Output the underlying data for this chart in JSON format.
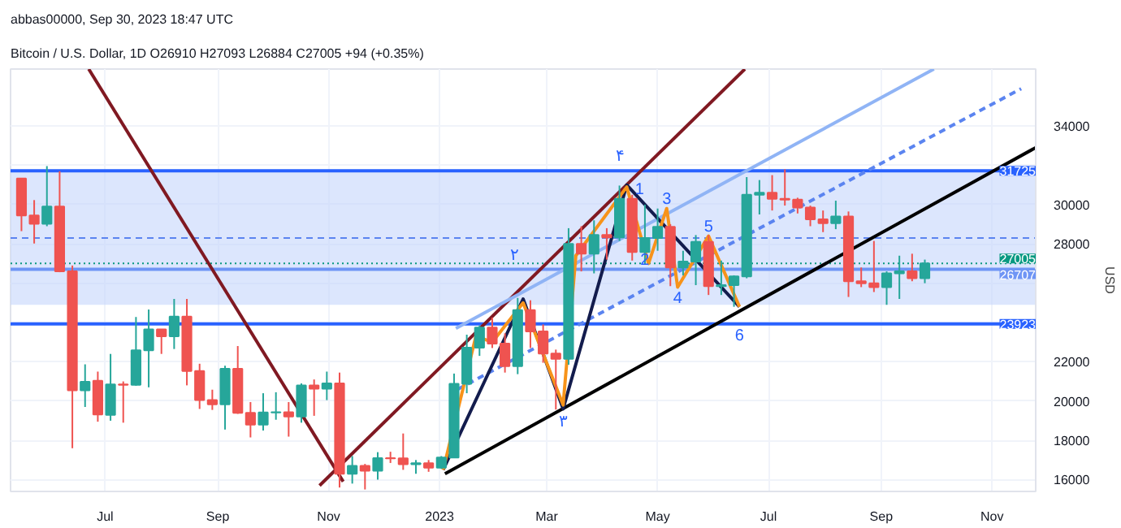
{
  "chart_data": {
    "type": "candlestick",
    "title": "Bitcoin / U.S. Dollar, 1D   O26910 H27093 L26884 C27005 +94 (+0.35%)",
    "subtitle": "abbas00000, Sep 30, 2023 18:47 UTC",
    "ylabel": "USD",
    "xlim": [
      "2022-05-10",
      "2023-11-25"
    ],
    "ylim": [
      15400,
      36900
    ],
    "xticks": [
      {
        "value": "2022-07-01",
        "label": "Jul"
      },
      {
        "value": "2022-09-01",
        "label": "Sep"
      },
      {
        "value": "2022-11-01",
        "label": "Nov"
      },
      {
        "value": "2023-01-01",
        "label": "2023"
      },
      {
        "value": "2023-03-01",
        "label": "Mar"
      },
      {
        "value": "2023-05-01",
        "label": "May"
      },
      {
        "value": "2023-07-01",
        "label": "Jul"
      },
      {
        "value": "2023-09-01",
        "label": "Sep"
      },
      {
        "value": "2023-11-01",
        "label": "Nov"
      }
    ],
    "yticks": [
      16000,
      18000,
      20000,
      22000,
      {
        "value": 24000,
        "label": null
      },
      {
        "value": 26000,
        "label": null
      },
      28000,
      30000,
      {
        "value": 32000,
        "label": null
      },
      34000
    ],
    "grid": true,
    "series": [
      {
        "x": [
          "2022-05-16",
          "2022-05-23",
          "2022-05-30",
          "2022-06-06",
          "2022-06-13",
          "2022-06-20",
          "2022-06-27",
          "2022-07-04",
          "2022-07-11",
          "2022-07-18",
          "2022-07-25",
          "2022-08-01",
          "2022-08-08",
          "2022-08-15",
          "2022-08-22",
          "2022-08-29",
          "2022-09-05",
          "2022-09-12",
          "2022-09-19",
          "2022-09-26",
          "2022-10-03",
          "2022-10-10",
          "2022-10-17",
          "2022-10-24",
          "2022-10-31",
          "2022-11-07",
          "2022-11-14",
          "2022-11-21",
          "2022-11-28",
          "2022-12-05",
          "2022-12-12",
          "2022-12-19",
          "2022-12-26",
          "2023-01-02",
          "2023-01-09",
          "2023-01-16",
          "2023-01-23",
          "2023-01-30",
          "2023-02-06",
          "2023-02-13",
          "2023-02-20",
          "2023-02-27",
          "2023-03-06",
          "2023-03-13",
          "2023-03-20",
          "2023-03-27",
          "2023-04-03",
          "2023-04-10",
          "2023-04-17",
          "2023-04-24",
          "2023-05-01",
          "2023-05-08",
          "2023-05-15",
          "2023-05-22",
          "2023-05-29",
          "2023-06-05",
          "2023-06-12",
          "2023-06-19",
          "2023-06-26",
          "2023-07-03",
          "2023-07-10",
          "2023-07-17",
          "2023-07-24",
          "2023-07-31",
          "2023-08-07",
          "2023-08-14",
          "2023-08-21",
          "2023-08-28",
          "2023-09-04",
          "2023-09-11",
          "2023-09-18",
          "2023-09-25"
        ],
        "ohlc": [
          [
            31330,
            31330,
            28650,
            29450
          ],
          [
            29450,
            30230,
            28020,
            29020
          ],
          [
            29020,
            31960,
            28900,
            29900
          ],
          [
            29900,
            31700,
            26560,
            26600
          ],
          [
            26600,
            26900,
            17600,
            20550
          ],
          [
            20550,
            21870,
            19700,
            20980
          ],
          [
            21030,
            21500,
            18950,
            19320
          ],
          [
            19300,
            22400,
            19000,
            20850
          ],
          [
            20850,
            21000,
            18900,
            20830
          ],
          [
            20830,
            24280,
            20780,
            22580
          ],
          [
            22580,
            24660,
            20700,
            23650
          ],
          [
            23650,
            23650,
            22400,
            23300
          ],
          [
            23300,
            25200,
            22650,
            24300
          ],
          [
            24300,
            25200,
            20800,
            21530
          ],
          [
            21530,
            21900,
            19600,
            20050
          ],
          [
            20050,
            20580,
            19550,
            19830
          ],
          [
            19830,
            21800,
            18550,
            21640
          ],
          [
            21640,
            22800,
            19350,
            19400
          ],
          [
            19400,
            19950,
            18150,
            18800
          ],
          [
            18800,
            20400,
            18500,
            19420
          ],
          [
            19420,
            20450,
            19050,
            19430
          ],
          [
            19430,
            19950,
            18190,
            19210
          ],
          [
            19210,
            20900,
            18900,
            20800
          ],
          [
            20800,
            21100,
            19250,
            20630
          ],
          [
            20630,
            21500,
            20050,
            20900
          ],
          [
            20900,
            21450,
            15600,
            16300
          ],
          [
            16300,
            17200,
            15800,
            16700
          ],
          [
            16700,
            16800,
            15500,
            16450
          ],
          [
            16450,
            17400,
            16000,
            17100
          ],
          [
            17100,
            17420,
            16850,
            17090
          ],
          [
            17090,
            18350,
            16500,
            16780
          ],
          [
            16780,
            17000,
            16300,
            16840
          ],
          [
            16840,
            17000,
            16400,
            16610
          ],
          [
            16610,
            17200,
            16550,
            17130
          ],
          [
            17130,
            21400,
            17100,
            20880
          ],
          [
            20880,
            23380,
            20400,
            22720
          ],
          [
            22720,
            23850,
            22300,
            23740
          ],
          [
            23740,
            24250,
            22700,
            22930
          ],
          [
            22930,
            23450,
            21450,
            21780
          ],
          [
            21780,
            25250,
            21370,
            24630
          ],
          [
            24630,
            25130,
            22700,
            23550
          ],
          [
            23550,
            23900,
            21950,
            22420
          ],
          [
            22420,
            22620,
            19570,
            22150
          ],
          [
            22150,
            28800,
            21850,
            28000
          ],
          [
            28000,
            28900,
            26600,
            27500
          ],
          [
            27500,
            29200,
            26500,
            28450
          ],
          [
            28450,
            28800,
            27200,
            28330
          ],
          [
            28330,
            30970,
            28150,
            30300
          ],
          [
            30300,
            30500,
            27150,
            27590
          ],
          [
            27590,
            30000,
            26950,
            28300
          ],
          [
            28300,
            29800,
            27650,
            28870
          ],
          [
            28870,
            29000,
            25850,
            26800
          ],
          [
            26800,
            27650,
            26400,
            27100
          ],
          [
            27100,
            28450,
            25900,
            28100
          ],
          [
            28100,
            28450,
            25400,
            25850
          ],
          [
            25850,
            27150,
            25400,
            25900
          ],
          [
            25900,
            26400,
            24800,
            26350
          ],
          [
            26350,
            31400,
            26250,
            30500
          ],
          [
            30500,
            31250,
            29500,
            30600
          ],
          [
            30600,
            31500,
            29700,
            30300
          ],
          [
            30300,
            31800,
            29950,
            30250
          ],
          [
            30250,
            30350,
            29550,
            29850
          ],
          [
            29850,
            29950,
            28900,
            29250
          ],
          [
            29250,
            29700,
            28600,
            29050
          ],
          [
            29050,
            30200,
            28750,
            29400
          ],
          [
            29400,
            29650,
            25300,
            26100
          ],
          [
            26100,
            26800,
            25800,
            26000
          ],
          [
            26000,
            28150,
            25550,
            25800
          ],
          [
            25800,
            26600,
            24900,
            26500
          ],
          [
            26500,
            27400,
            25200,
            26600
          ],
          [
            26600,
            27500,
            26100,
            26250
          ],
          [
            26250,
            27200,
            26000,
            27005
          ]
        ],
        "colors": [
          "#ef5350",
          "#ef5350",
          "#26a69a",
          "#ef5350",
          "#ef5350",
          "#26a69a",
          "#ef5350",
          "#26a69a",
          "#ef5350",
          "#26a69a",
          "#26a69a",
          "#ef5350",
          "#26a69a",
          "#ef5350",
          "#ef5350",
          "#ef5350",
          "#26a69a",
          "#ef5350",
          "#ef5350",
          "#26a69a",
          "#26a69a",
          "#ef5350",
          "#26a69a",
          "#ef5350",
          "#26a69a",
          "#ef5350",
          "#26a69a",
          "#ef5350",
          "#26a69a",
          "#ef5350",
          "#ef5350",
          "#26a69a",
          "#ef5350",
          "#26a69a",
          "#26a69a",
          "#26a69a",
          "#26a69a",
          "#ef5350",
          "#ef5350",
          "#26a69a",
          "#ef5350",
          "#ef5350",
          "#ef5350",
          "#26a69a",
          "#ef5350",
          "#26a69a",
          "#ef5350",
          "#26a69a",
          "#ef5350",
          "#26a69a",
          "#26a69a",
          "#ef5350",
          "#26a69a",
          "#26a69a",
          "#ef5350",
          "#26a69a",
          "#26a69a",
          "#26a69a",
          "#26a69a",
          "#ef5350",
          "#ef5350",
          "#ef5350",
          "#ef5350",
          "#ef5350",
          "#26a69a",
          "#ef5350",
          "#ef5350",
          "#ef5350",
          "#26a69a",
          "#26a69a",
          "#ef5350",
          "#26a69a"
        ]
      },
      {
        "type": "line",
        "color": "#801922",
        "x": [
          "2022-06-22",
          "2022-11-09"
        ],
        "values": [
          36900,
          15900
        ]
      },
      {
        "type": "line",
        "color": "#801922",
        "x": [
          "2022-10-27",
          "2023-06-18"
        ],
        "values": [
          15700,
          36900
        ]
      },
      {
        "type": "line",
        "color": "#000000",
        "x": [
          "2023-01-04",
          "2023-11-25"
        ],
        "values": [
          16300,
          32900
        ]
      },
      {
        "type": "line",
        "color": "#90b4f5",
        "x": [
          "2023-01-10",
          "2023-09-30"
        ],
        "values": [
          23700,
          36900
        ]
      },
      {
        "type": "line",
        "color": "#5b84f0",
        "line_style": "dashed",
        "x": [
          "2023-01-11",
          "2023-11-17"
        ],
        "values": [
          20600,
          35900
        ]
      },
      {
        "type": "line",
        "color": "#131c4d",
        "x": [
          "2023-01-03",
          "2023-02-16",
          "2023-03-10",
          "2023-04-14",
          "2023-06-15"
        ],
        "values": [
          16500,
          25200,
          19600,
          31000,
          24800
        ]
      },
      {
        "type": "line",
        "color": "#f7931a",
        "x": [
          "2023-01-03",
          "2023-01-21",
          "2023-01-30",
          "2023-02-16",
          "2023-03-10",
          "2023-03-17",
          "2023-04-14",
          "2023-04-26",
          "2023-05-06",
          "2023-05-12",
          "2023-05-29",
          "2023-06-15"
        ],
        "values": [
          16500,
          23300,
          23000,
          25000,
          19800,
          27400,
          30900,
          27000,
          29800,
          25800,
          28400,
          24800
        ]
      }
    ],
    "bands": [
      {
        "axis": "y",
        "from": 24900,
        "to": 31725,
        "color": "#c5d5fb"
      }
    ],
    "ref_lines": [
      {
        "axis": "y",
        "value": 31725,
        "label": "31725",
        "color": "#2962ff"
      },
      {
        "axis": "y",
        "value": 28300,
        "color": "#5b84f0",
        "line_style": "dashed"
      },
      {
        "axis": "y",
        "value": 27005,
        "label": "27005",
        "color": "#089981",
        "line_style": "dotted"
      },
      {
        "axis": "y",
        "value": 26707,
        "label": "26707",
        "color": "#6f95f5"
      },
      {
        "axis": "y",
        "value": 23923,
        "label": "23923",
        "color": "#2962ff"
      }
    ],
    "annotations": [
      {
        "text": "1",
        "x": "2023-04-21",
        "y": 30300
      },
      {
        "text": "2",
        "x": "2023-04-24",
        "y": 26707
      },
      {
        "text": "3",
        "x": "2023-05-06",
        "y": 29800
      },
      {
        "text": "4",
        "x": "2023-05-12",
        "y": 25800
      },
      {
        "text": "5",
        "x": "2023-05-29",
        "y": 28400
      },
      {
        "text": "6",
        "x": "2023-06-15",
        "y": 23923
      },
      {
        "text": "۲",
        "x": "2023-02-11",
        "y": 26707
      },
      {
        "text": "۳",
        "x": "2023-03-10",
        "y": 19600
      },
      {
        "text": "۴",
        "x": "2023-04-10",
        "y": 31725
      }
    ]
  }
}
